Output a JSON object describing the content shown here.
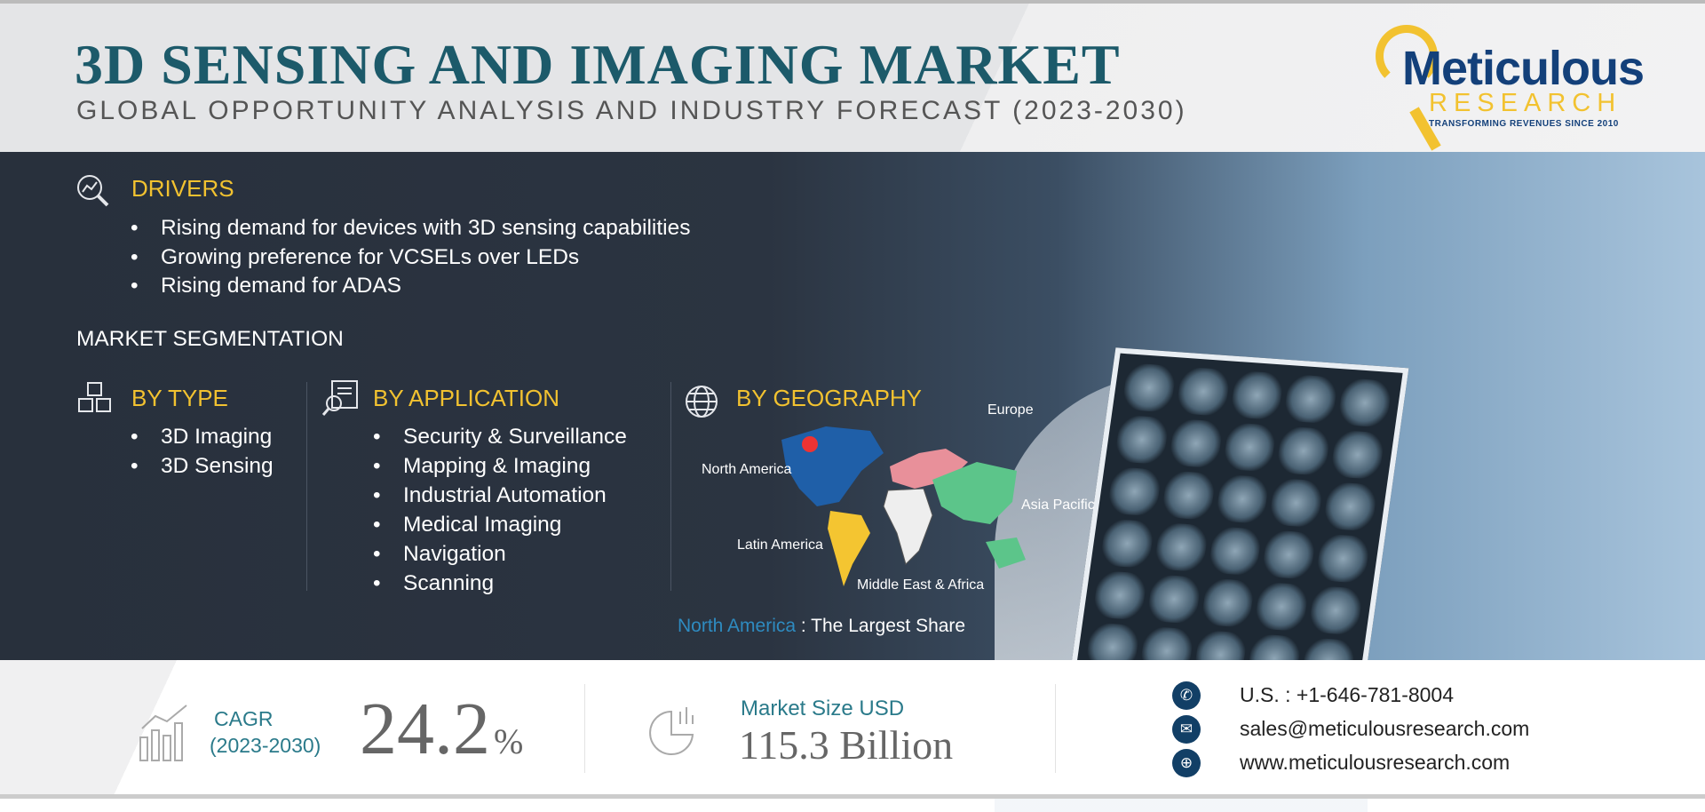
{
  "header": {
    "title": "3D SENSING AND IMAGING MARKET",
    "subtitle": "GLOBAL OPPORTUNITY ANALYSIS AND INDUSTRY FORECAST (2023-2030)"
  },
  "logo": {
    "name": "Meticulous",
    "sub": "RESEARCH",
    "tagline": "TRANSFORMING REVENUES SINCE 2010"
  },
  "drivers": {
    "heading": "DRIVERS",
    "icon": "magnifier-chart-icon",
    "items": [
      "Rising demand for devices with 3D sensing capabilities",
      "Growing preference for VCSELs over LEDs",
      "Rising demand for ADAS"
    ]
  },
  "segmentation": {
    "heading": "MARKET SEGMENTATION",
    "by_type": {
      "heading": "BY TYPE",
      "icon": "cubes-icon",
      "items": [
        "3D Imaging",
        "3D Sensing"
      ]
    },
    "by_application": {
      "heading": "BY APPLICATION",
      "icon": "search-document-icon",
      "items": [
        "Security & Surveillance",
        "Mapping & Imaging",
        "Industrial Automation",
        "Medical Imaging",
        "Navigation",
        "Scanning"
      ]
    },
    "by_geography": {
      "heading": "BY GEOGRAPHY",
      "icon": "globe-icon",
      "regions": {
        "north_america": "North America",
        "europe": "Europe",
        "asia_pacific": "Asia Pacific",
        "latin_america": "Latin America",
        "mea": "Middle East & Africa"
      },
      "largest_region": "North America",
      "largest_label": " : The Largest Share"
    }
  },
  "stats": {
    "cagr_label": "CAGR",
    "cagr_period": "(2023-2030)",
    "cagr_value": "24.2",
    "cagr_unit": "%",
    "market_label": "Market Size USD",
    "market_value": "115.3 Billion"
  },
  "contact": {
    "phone": "U.S. : +1-646-781-8004",
    "email": "sales@meticulousresearch.com",
    "web": "www.meticulousresearch.com"
  },
  "colors": {
    "title": "#1c5a6a",
    "accent": "#f2c230",
    "navy": "#123f66",
    "teal": "#2a7a8a"
  }
}
